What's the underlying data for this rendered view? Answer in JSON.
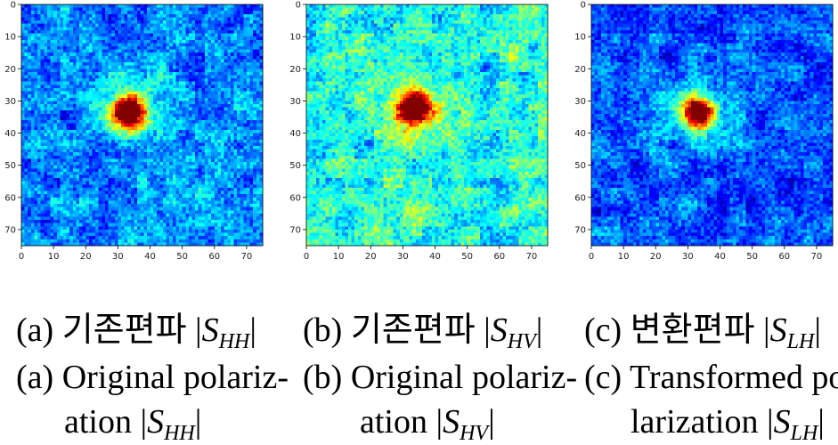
{
  "chart_data": [
    {
      "type": "heatmap",
      "panel": "a",
      "rows": 75,
      "cols": 75,
      "colormap": "jet",
      "xlim": [
        0,
        75
      ],
      "ylim": [
        75,
        0
      ],
      "xticks": [
        0,
        10,
        20,
        30,
        40,
        50,
        60,
        70
      ],
      "yticks": [
        0,
        10,
        20,
        30,
        40,
        50,
        60,
        70
      ],
      "target": {
        "x": 33,
        "y": 33,
        "peak": 0.92
      },
      "background_level": 0.25,
      "noise_amplitude": 0.14,
      "seed": 11,
      "caption": {
        "korean_label": "(a)",
        "korean_text": "기존편파",
        "korean_symbol": "S",
        "korean_sub": "HH",
        "en_label": "(a)",
        "en_line1": "Original polariz-",
        "en_line2": "ation",
        "en_symbol": "S",
        "en_sub": "HH"
      }
    },
    {
      "type": "heatmap",
      "panel": "b",
      "rows": 75,
      "cols": 75,
      "colormap": "jet",
      "xlim": [
        0,
        75
      ],
      "ylim": [
        75,
        0
      ],
      "xticks": [
        0,
        10,
        20,
        30,
        40,
        50,
        60,
        70
      ],
      "yticks": [
        0,
        10,
        20,
        30,
        40,
        50,
        60,
        70
      ],
      "target": {
        "x": 33,
        "y": 32,
        "peak": 0.85
      },
      "background_level": 0.4,
      "noise_amplitude": 0.16,
      "seed": 23,
      "caption": {
        "korean_label": "(b)",
        "korean_text": "기존편파",
        "korean_symbol": "S",
        "korean_sub": "HV",
        "en_label": "(b)",
        "en_line1": "Original polariz-",
        "en_line2": "ation",
        "en_symbol": "S",
        "en_sub": "HV"
      }
    },
    {
      "type": "heatmap",
      "panel": "c",
      "rows": 75,
      "cols": 75,
      "colormap": "jet",
      "xlim": [
        0,
        75
      ],
      "ylim": [
        75,
        0
      ],
      "xticks": [
        0,
        10,
        20,
        30,
        40,
        50,
        60,
        70
      ],
      "yticks": [
        0,
        10,
        20,
        30,
        40,
        50,
        60,
        70
      ],
      "target": {
        "x": 33,
        "y": 33,
        "peak": 0.9
      },
      "background_level": 0.2,
      "noise_amplitude": 0.13,
      "seed": 37,
      "caption": {
        "korean_label": "(c)",
        "korean_text": "변환편파",
        "korean_symbol": "S",
        "korean_sub": "LH",
        "en_label": "(c)",
        "en_line1": "Transformed po-",
        "en_line2": "larization",
        "en_symbol": "S",
        "en_sub": "LH"
      }
    }
  ]
}
